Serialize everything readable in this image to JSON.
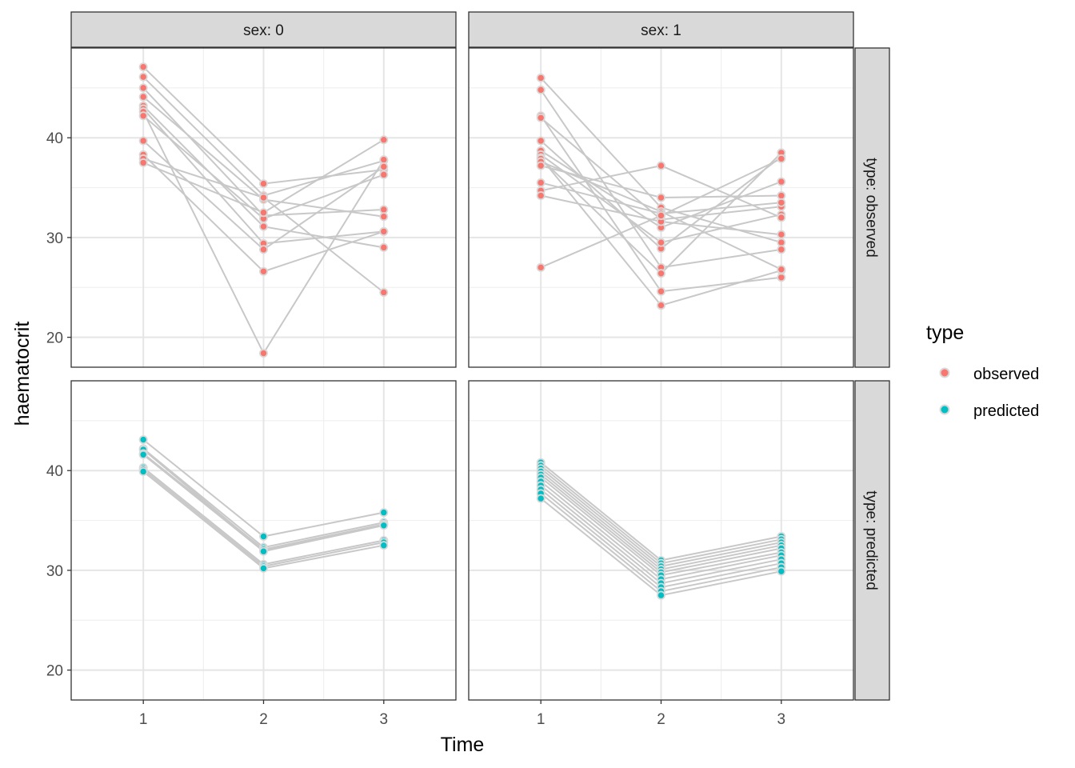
{
  "chart_data": {
    "type": "line",
    "xlabel": "Time",
    "ylabel": "haematocrit",
    "x_ticks": [
      1,
      2,
      3
    ],
    "y_ticks": [
      20,
      30,
      40
    ],
    "xlim": [
      0.4,
      3.6
    ],
    "ylim": [
      17,
      49
    ],
    "grid": true,
    "column_facet": {
      "labels": [
        "sex: 0",
        "sex: 1"
      ]
    },
    "row_facet": {
      "labels": [
        "type: observed",
        "type: predicted"
      ]
    },
    "legend": {
      "title": "type",
      "position": "right",
      "entries": [
        {
          "label": "observed",
          "color": "#F8766D"
        },
        {
          "label": "predicted",
          "color": "#00BFC4"
        }
      ]
    },
    "line_color": "#c8c8c8",
    "panels": [
      {
        "sex": "sex: 0",
        "type": "type: observed",
        "color": "#F8766D",
        "subjects": [
          [
            47.1,
            35.4,
            36.8
          ],
          [
            46.1,
            34.2,
            37.7
          ],
          [
            45.0,
            32.2,
            32.8
          ],
          [
            44.1,
            33.8,
            32.1
          ],
          [
            43.2,
            31.1,
            29.0
          ],
          [
            42.9,
            29.4,
            30.6
          ],
          [
            42.6,
            18.4,
            37.8
          ],
          [
            42.2,
            31.9,
            36.3
          ],
          [
            39.7,
            28.8,
            37.1
          ],
          [
            38.3,
            26.6,
            30.6
          ],
          [
            37.9,
            34.0,
            24.5
          ],
          [
            37.5,
            32.5,
            39.8
          ]
        ]
      },
      {
        "sex": "sex: 1",
        "type": "type: observed",
        "color": "#F8766D",
        "subjects": [
          [
            46.0,
            33.0,
            29.5
          ],
          [
            44.8,
            27.0,
            28.8
          ],
          [
            42.2,
            24.6,
            26.0
          ],
          [
            42.0,
            31.8,
            33.1
          ],
          [
            39.7,
            28.9,
            38.1
          ],
          [
            38.7,
            31.0,
            35.6
          ],
          [
            38.3,
            29.5,
            32.3
          ],
          [
            38.0,
            23.2,
            26.7
          ],
          [
            37.9,
            26.4,
            38.5
          ],
          [
            37.6,
            32.6,
            26.8
          ],
          [
            37.2,
            34.0,
            34.2
          ],
          [
            35.5,
            32.4,
            33.5
          ],
          [
            34.7,
            37.2,
            32.0
          ],
          [
            34.2,
            31.6,
            30.3
          ],
          [
            27.0,
            32.2,
            37.9
          ]
        ]
      },
      {
        "sex": "sex: 0",
        "type": "type: predicted",
        "color": "#00BFC4",
        "subjects": [
          [
            43.1,
            33.4,
            35.8
          ],
          [
            42.2,
            32.3,
            34.8
          ],
          [
            42.1,
            32.0,
            34.6
          ],
          [
            41.7,
            32.1,
            34.6
          ],
          [
            41.6,
            31.9,
            34.5
          ],
          [
            40.3,
            30.6,
            33.0
          ],
          [
            40.1,
            30.4,
            32.8
          ],
          [
            39.9,
            30.2,
            32.5
          ]
        ]
      },
      {
        "sex": "sex: 1",
        "type": "type: predicted",
        "color": "#00BFC4",
        "subjects": [
          [
            40.8,
            31.0,
            33.4
          ],
          [
            40.5,
            30.7,
            33.1
          ],
          [
            40.2,
            30.4,
            32.8
          ],
          [
            39.9,
            30.1,
            32.5
          ],
          [
            39.6,
            29.8,
            32.2
          ],
          [
            39.3,
            29.5,
            31.8
          ],
          [
            38.9,
            29.1,
            31.5
          ],
          [
            38.5,
            28.7,
            31.1
          ],
          [
            38.1,
            28.3,
            30.7
          ],
          [
            37.7,
            27.9,
            30.3
          ],
          [
            37.2,
            27.5,
            29.9
          ]
        ]
      }
    ]
  }
}
